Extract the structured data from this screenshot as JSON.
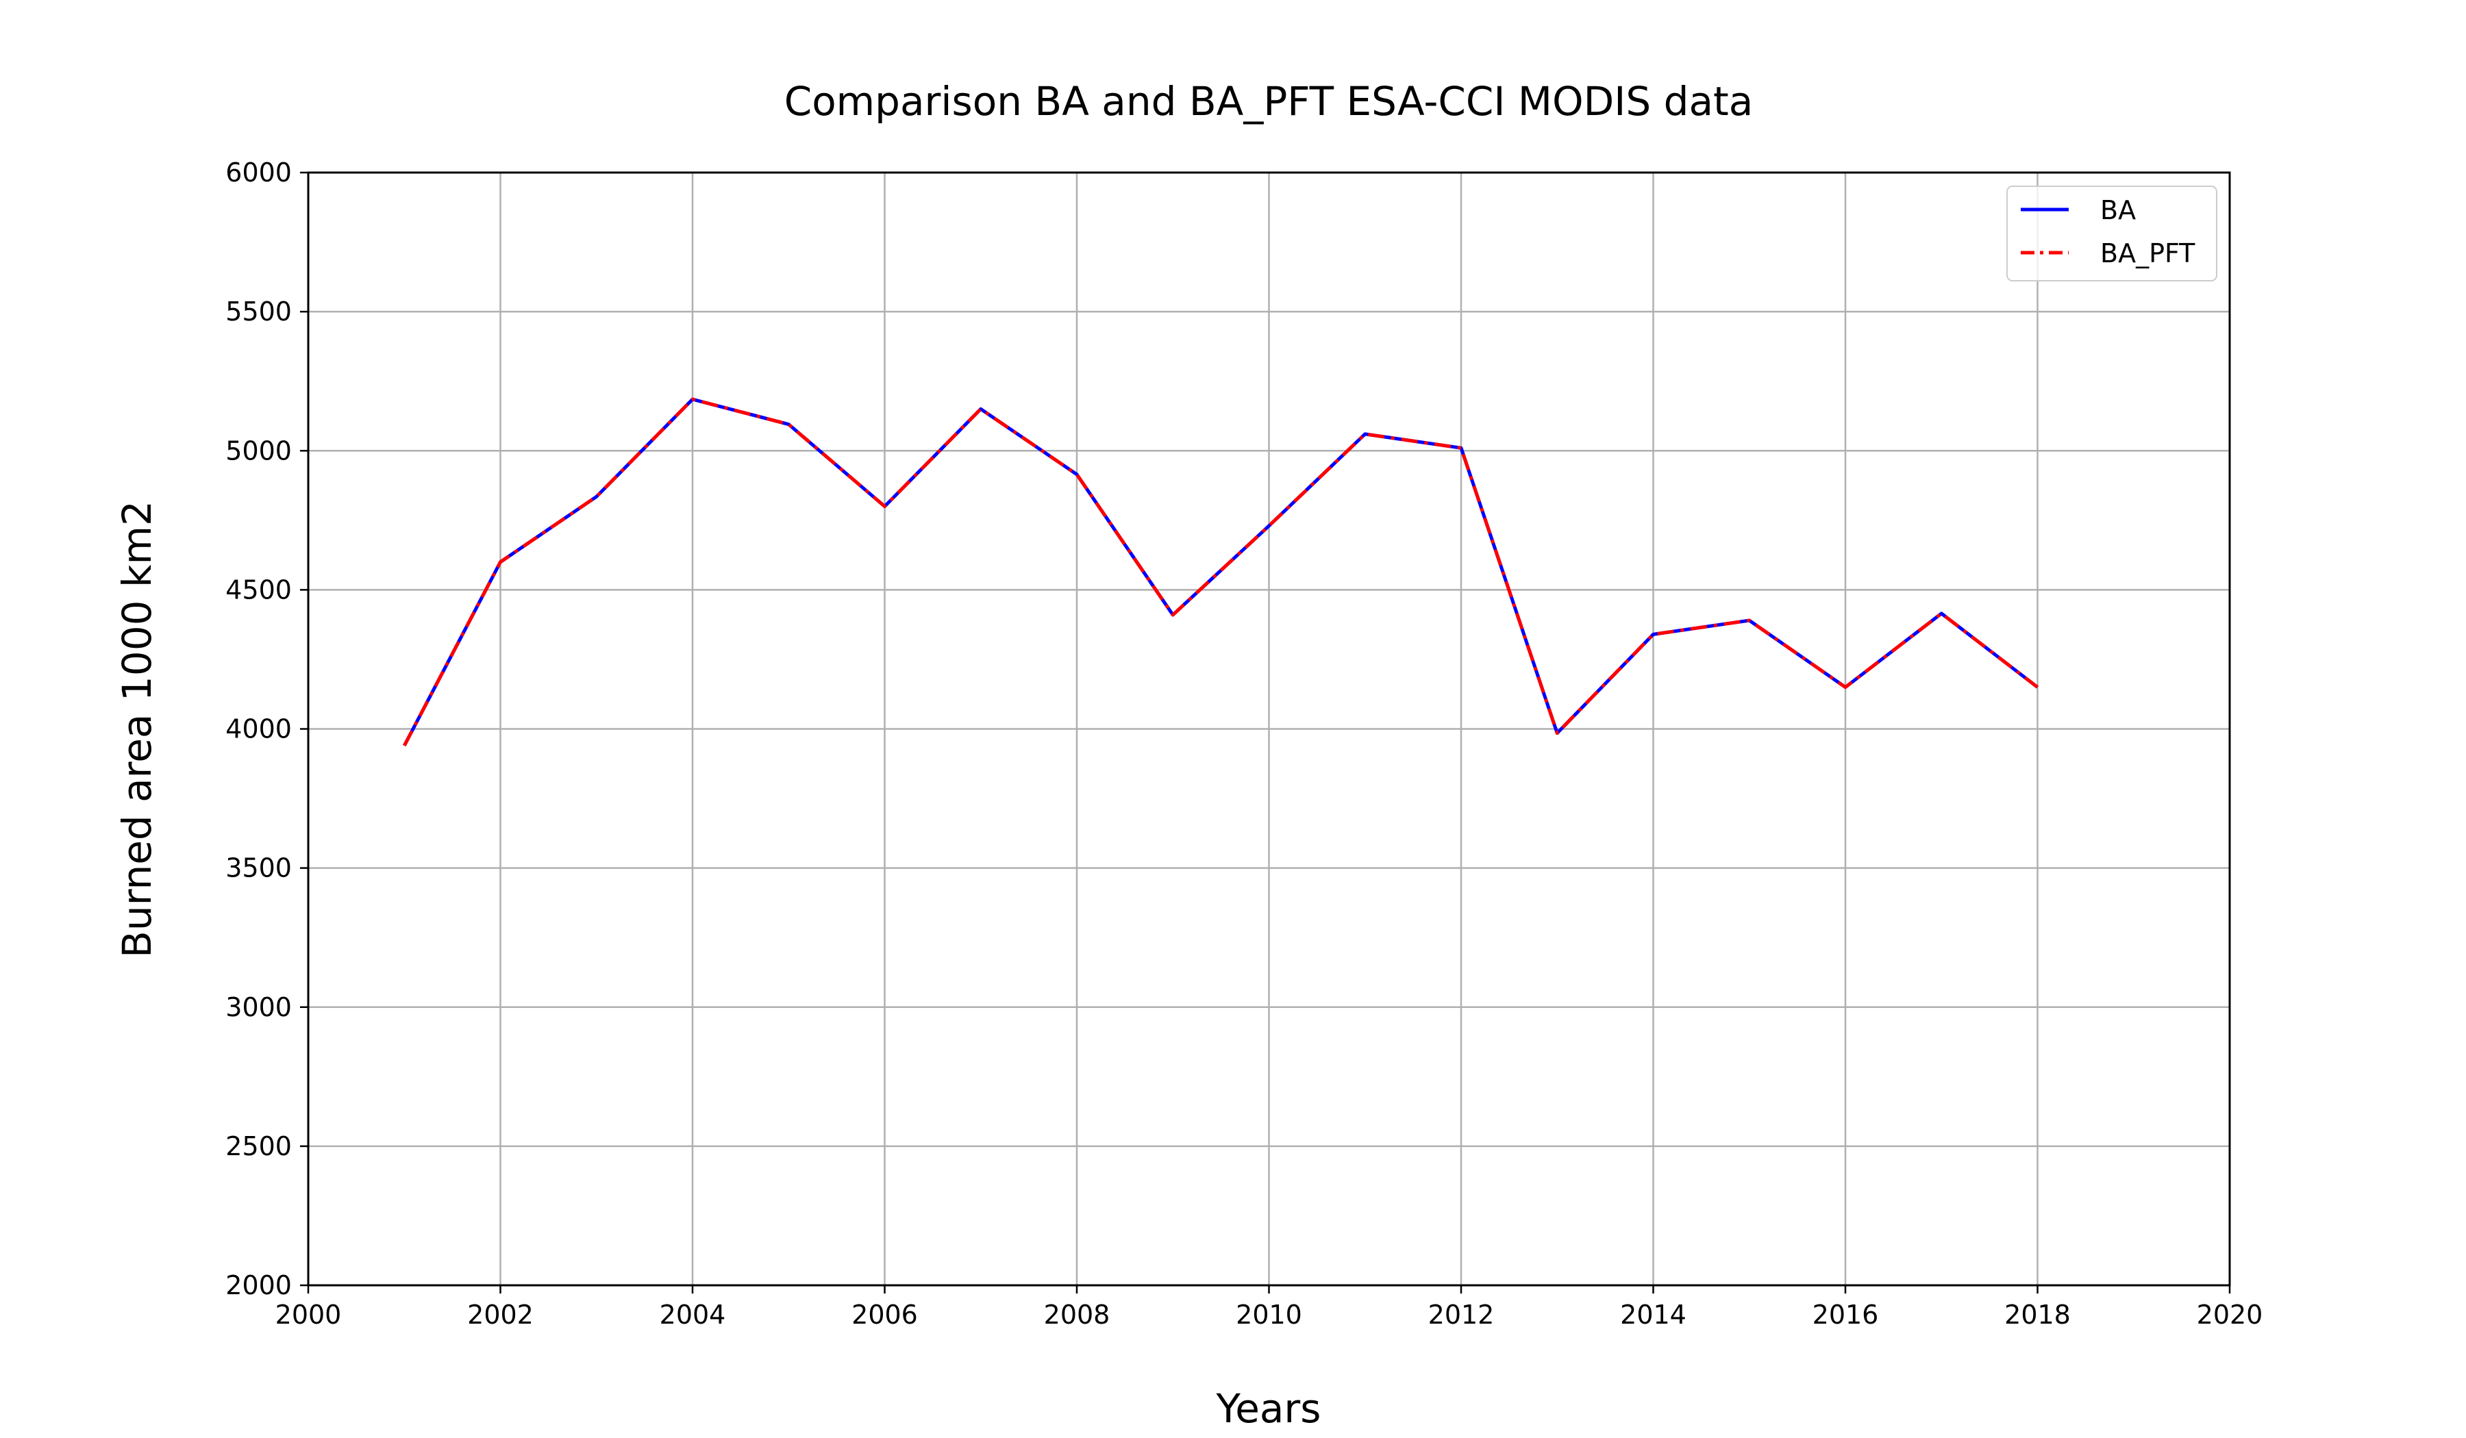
{
  "chart_data": {
    "type": "line",
    "title": "Comparison BA and BA_PFT ESA-CCI MODIS data",
    "xlabel": "Years",
    "ylabel": "Burned area 1000 km2",
    "xlim": [
      2000,
      2020
    ],
    "ylim": [
      2000,
      6000
    ],
    "xticks": [
      2000,
      2002,
      2004,
      2006,
      2008,
      2010,
      2012,
      2014,
      2016,
      2018,
      2020
    ],
    "yticks": [
      2000,
      2500,
      3000,
      3500,
      4000,
      4500,
      5000,
      5500,
      6000
    ],
    "grid": true,
    "legend_position": "top-right",
    "x": [
      2001,
      2002,
      2003,
      2004,
      2005,
      2006,
      2007,
      2008,
      2009,
      2010,
      2011,
      2012,
      2013,
      2014,
      2015,
      2016,
      2017,
      2018
    ],
    "series": [
      {
        "name": "BA",
        "color": "#0000ff",
        "style": "solid",
        "values": [
          3940,
          4600,
          4835,
          5185,
          5095,
          4800,
          5150,
          4915,
          4410,
          4730,
          5060,
          5010,
          3985,
          4340,
          4390,
          4150,
          4415,
          4150
        ]
      },
      {
        "name": "BA_PFT",
        "color": "#ff0000",
        "style": "dashdot",
        "values": [
          3940,
          4600,
          4835,
          5185,
          5095,
          4800,
          5150,
          4915,
          4410,
          4730,
          5060,
          5010,
          3985,
          4340,
          4390,
          4150,
          4415,
          4150
        ]
      }
    ]
  }
}
